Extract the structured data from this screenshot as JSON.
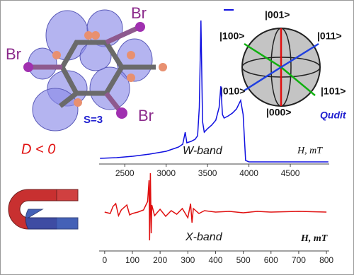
{
  "chart_data": [
    {
      "type": "line",
      "x_label": "H, mT",
      "band_label": "W-band",
      "color": "#1010e0",
      "x": [
        2200,
        2400,
        2600,
        2800,
        2900,
        3000,
        3100,
        3150,
        3200,
        3230,
        3250,
        3300,
        3350,
        3380,
        3400,
        3420,
        3440,
        3460,
        3500,
        3550,
        3600,
        3640,
        3660,
        3680,
        3700,
        3750,
        3800,
        3850,
        3900,
        3930,
        3960,
        4000,
        4200,
        4500,
        4800,
        4960
      ],
      "values": [
        8,
        9,
        11,
        14,
        16,
        18,
        22,
        24,
        28,
        45,
        30,
        32,
        35,
        40,
        80,
        203,
        60,
        45,
        50,
        55,
        62,
        80,
        110,
        70,
        65,
        68,
        72,
        78,
        90,
        70,
        5,
        3,
        3,
        3,
        3,
        3
      ],
      "xlim": [
        2190,
        4970
      ],
      "xticks": [
        2500,
        3000,
        3500,
        4000,
        4500
      ],
      "ylim": [
        0,
        214
      ]
    },
    {
      "type": "line",
      "x_label": "H, mT",
      "band_label": "X-band",
      "color": "#e01010",
      "x": [
        0,
        20,
        30,
        40,
        50,
        60,
        80,
        90,
        100,
        120,
        140,
        155,
        160,
        162,
        165,
        168,
        170,
        180,
        200,
        220,
        240,
        260,
        280,
        300,
        310,
        315,
        320,
        340,
        360,
        400,
        450,
        500,
        550,
        600,
        700,
        800
      ],
      "values": [
        0,
        -2,
        8,
        12,
        -5,
        3,
        10,
        -4,
        -2,
        0,
        3,
        15,
        45,
        -40,
        55,
        -30,
        10,
        -5,
        4,
        -6,
        2,
        -3,
        5,
        -8,
        12,
        -15,
        5,
        -2,
        2,
        0,
        1,
        -1,
        1,
        0,
        1,
        0
      ],
      "xlim": [
        -20,
        810
      ],
      "xticks": [
        0,
        100,
        200,
        300,
        400,
        500,
        600,
        700,
        800
      ],
      "ylim": [
        -60,
        60
      ]
    }
  ],
  "molecule": {
    "bromine_labels": [
      "Br",
      "Br",
      "Br"
    ],
    "spin_label": "S=3"
  },
  "anisotropy_label": "D < 0",
  "qudit": {
    "title": "Qudit",
    "states": [
      "|001>",
      "|100>",
      "|011>",
      "|010>",
      "|101>",
      "|000>"
    ]
  }
}
